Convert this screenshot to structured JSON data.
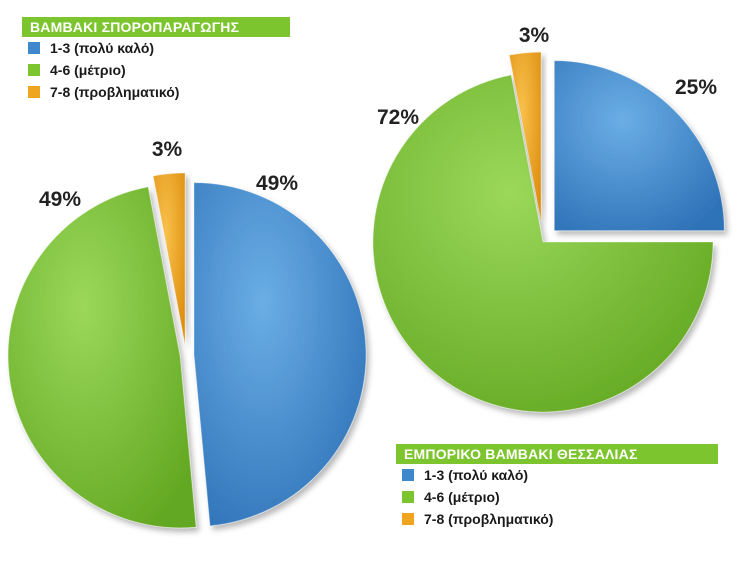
{
  "colors": {
    "blue": "#3f88cc",
    "green": "#7dc52e",
    "orange": "#f0a51e",
    "legend_bar": "#7dc52e"
  },
  "chart_data": [
    {
      "type": "pie",
      "title": "ΒΑΜΒΑΚΙ ΣΠΟΡΟΠΑΡΑΓΩΓΗΣ",
      "categories": [
        "1-3 (πολύ καλό)",
        "4-6 (μέτριο)",
        "7-8 (προβληματικό)"
      ],
      "values": [
        49,
        49,
        3
      ],
      "labels": [
        "49%",
        "49%",
        "3%"
      ],
      "legend": "top-left"
    },
    {
      "type": "pie",
      "title": "ΕΜΠΟΡΙΚΟ ΒΑΜΒΑΚΙ ΘΕΣΣΑΛΙΑΣ",
      "categories": [
        "1-3 (πολύ καλό)",
        "4-6 (μέτριο)",
        "7-8 (προβληματικό)"
      ],
      "values": [
        25,
        72,
        3
      ],
      "labels": [
        "25%",
        "72%",
        "3%"
      ],
      "legend": "bottom-right"
    }
  ]
}
